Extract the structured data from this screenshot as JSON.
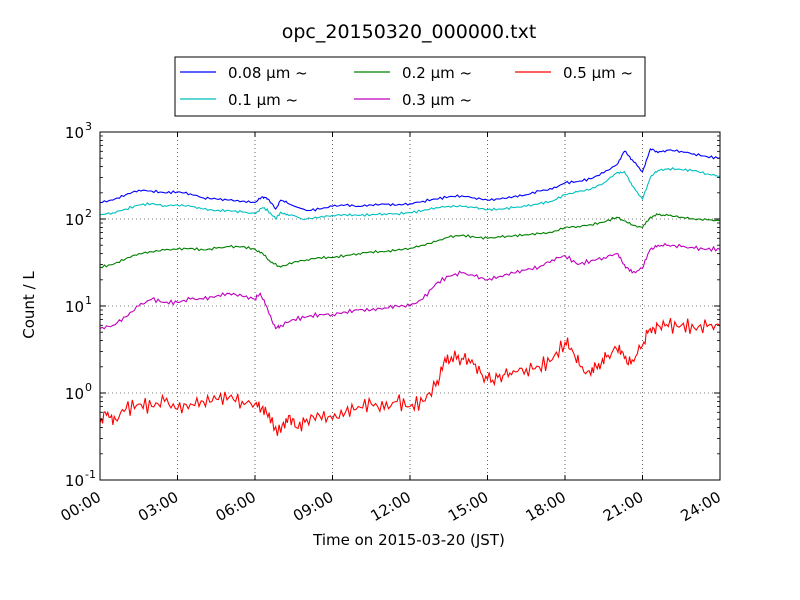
{
  "chart_data": {
    "type": "line",
    "title": "opc_20150320_000000.txt",
    "xlabel": "Time on 2015-03-20 (JST)",
    "ylabel": "Count / L",
    "yscale": "log",
    "xlim": [
      0,
      24
    ],
    "ylim_exp": [
      -1,
      3
    ],
    "grid": true,
    "legend_placement": "top-center",
    "x_ticks": [
      {
        "value": 0,
        "label": "00:00"
      },
      {
        "value": 3,
        "label": "03:00"
      },
      {
        "value": 6,
        "label": "06:00"
      },
      {
        "value": 9,
        "label": "09:00"
      },
      {
        "value": 12,
        "label": "12:00"
      },
      {
        "value": 15,
        "label": "15:00"
      },
      {
        "value": 18,
        "label": "18:00"
      },
      {
        "value": 21,
        "label": "21:00"
      },
      {
        "value": 24,
        "label": "24:00"
      }
    ],
    "y_ticks": [
      {
        "value": 0.1,
        "base": "10",
        "exp": "-1"
      },
      {
        "value": 1,
        "base": "10",
        "exp": "0"
      },
      {
        "value": 10,
        "base": "10",
        "exp": "1"
      },
      {
        "value": 100,
        "base": "10",
        "exp": "2"
      },
      {
        "value": 1000,
        "base": "10",
        "exp": "3"
      }
    ],
    "series": [
      {
        "name": "0.08 μm ~",
        "color": "#0000ff",
        "points": [
          [
            0,
            155
          ],
          [
            0.5,
            165
          ],
          [
            1,
            190
          ],
          [
            1.5,
            215
          ],
          [
            2,
            210
          ],
          [
            2.5,
            200
          ],
          [
            3,
            205
          ],
          [
            3.5,
            195
          ],
          [
            4,
            175
          ],
          [
            4.5,
            170
          ],
          [
            5,
            165
          ],
          [
            5.5,
            160
          ],
          [
            6,
            155
          ],
          [
            6.3,
            180
          ],
          [
            6.5,
            170
          ],
          [
            6.8,
            130
          ],
          [
            7,
            165
          ],
          [
            7.3,
            150
          ],
          [
            8,
            125
          ],
          [
            8.5,
            130
          ],
          [
            9,
            140
          ],
          [
            9.5,
            145
          ],
          [
            10,
            140
          ],
          [
            10.5,
            145
          ],
          [
            11,
            148
          ],
          [
            11.5,
            145
          ],
          [
            12,
            150
          ],
          [
            12.5,
            160
          ],
          [
            13,
            170
          ],
          [
            13.5,
            180
          ],
          [
            14,
            185
          ],
          [
            14.5,
            175
          ],
          [
            15,
            165
          ],
          [
            15.5,
            170
          ],
          [
            16,
            180
          ],
          [
            16.5,
            190
          ],
          [
            17,
            210
          ],
          [
            17.5,
            220
          ],
          [
            18,
            260
          ],
          [
            18.5,
            270
          ],
          [
            19,
            290
          ],
          [
            19.5,
            340
          ],
          [
            20,
            420
          ],
          [
            20.3,
            600
          ],
          [
            20.6,
            480
          ],
          [
            21,
            350
          ],
          [
            21.3,
            640
          ],
          [
            21.6,
            580
          ],
          [
            22,
            620
          ],
          [
            22.5,
            600
          ],
          [
            23,
            560
          ],
          [
            23.5,
            520
          ],
          [
            24,
            500
          ]
        ]
      },
      {
        "name": "0.1 μm ~",
        "color": "#00bfbf",
        "points": [
          [
            0,
            112
          ],
          [
            0.5,
            118
          ],
          [
            1,
            130
          ],
          [
            1.5,
            145
          ],
          [
            2,
            150
          ],
          [
            2.5,
            142
          ],
          [
            3,
            145
          ],
          [
            3.5,
            140
          ],
          [
            4,
            130
          ],
          [
            4.5,
            125
          ],
          [
            5,
            125
          ],
          [
            5.5,
            120
          ],
          [
            6,
            115
          ],
          [
            6.3,
            135
          ],
          [
            6.5,
            125
          ],
          [
            6.8,
            100
          ],
          [
            7,
            120
          ],
          [
            7.3,
            110
          ],
          [
            8,
            100
          ],
          [
            8.5,
            105
          ],
          [
            9,
            110
          ],
          [
            9.5,
            112
          ],
          [
            10,
            110
          ],
          [
            10.5,
            112
          ],
          [
            11,
            115
          ],
          [
            11.5,
            115
          ],
          [
            12,
            118
          ],
          [
            12.5,
            125
          ],
          [
            13,
            135
          ],
          [
            13.5,
            140
          ],
          [
            14,
            140
          ],
          [
            14.5,
            135
          ],
          [
            15,
            128
          ],
          [
            15.5,
            130
          ],
          [
            16,
            135
          ],
          [
            16.5,
            140
          ],
          [
            17,
            150
          ],
          [
            17.5,
            160
          ],
          [
            18,
            190
          ],
          [
            18.5,
            205
          ],
          [
            19,
            220
          ],
          [
            19.5,
            260
          ],
          [
            20,
            340
          ],
          [
            20.3,
            350
          ],
          [
            20.6,
            240
          ],
          [
            21,
            170
          ],
          [
            21.3,
            300
          ],
          [
            21.6,
            360
          ],
          [
            22,
            380
          ],
          [
            22.5,
            370
          ],
          [
            23,
            360
          ],
          [
            23.5,
            330
          ],
          [
            24,
            310
          ]
        ]
      },
      {
        "name": "0.2 μm ~",
        "color": "#008000",
        "points": [
          [
            0,
            28
          ],
          [
            0.5,
            30
          ],
          [
            1,
            35
          ],
          [
            1.5,
            40
          ],
          [
            2,
            42
          ],
          [
            2.5,
            44
          ],
          [
            3,
            45
          ],
          [
            3.5,
            46
          ],
          [
            4,
            44
          ],
          [
            4.5,
            46
          ],
          [
            5,
            48
          ],
          [
            5.5,
            48
          ],
          [
            6,
            45
          ],
          [
            6.3,
            40
          ],
          [
            6.6,
            32
          ],
          [
            7,
            28
          ],
          [
            7.5,
            32
          ],
          [
            8,
            34
          ],
          [
            8.5,
            36
          ],
          [
            9,
            36
          ],
          [
            9.5,
            38
          ],
          [
            10,
            40
          ],
          [
            10.5,
            42
          ],
          [
            11,
            42
          ],
          [
            11.5,
            44
          ],
          [
            12,
            46
          ],
          [
            12.5,
            50
          ],
          [
            13,
            55
          ],
          [
            13.5,
            62
          ],
          [
            14,
            65
          ],
          [
            14.5,
            62
          ],
          [
            15,
            60
          ],
          [
            15.5,
            62
          ],
          [
            16,
            64
          ],
          [
            16.5,
            66
          ],
          [
            17,
            68
          ],
          [
            17.5,
            70
          ],
          [
            18,
            80
          ],
          [
            18.5,
            82
          ],
          [
            19,
            86
          ],
          [
            19.5,
            92
          ],
          [
            20,
            105
          ],
          [
            20.3,
            95
          ],
          [
            20.6,
            85
          ],
          [
            21,
            80
          ],
          [
            21.3,
            105
          ],
          [
            21.6,
            112
          ],
          [
            22,
            110
          ],
          [
            22.5,
            105
          ],
          [
            23,
            100
          ],
          [
            23.5,
            98
          ],
          [
            24,
            95
          ]
        ]
      },
      {
        "name": "0.3 μm ~",
        "color": "#bf00bf",
        "points": [
          [
            0,
            5.5
          ],
          [
            0.5,
            6.0
          ],
          [
            1,
            7.5
          ],
          [
            1.5,
            10
          ],
          [
            2,
            12
          ],
          [
            2.5,
            11
          ],
          [
            3,
            11
          ],
          [
            3.5,
            12
          ],
          [
            4,
            12
          ],
          [
            4.5,
            13
          ],
          [
            5,
            14
          ],
          [
            5.5,
            13
          ],
          [
            6,
            12
          ],
          [
            6.2,
            14
          ],
          [
            6.5,
            9
          ],
          [
            6.8,
            5.5
          ],
          [
            7,
            6
          ],
          [
            7.5,
            7
          ],
          [
            8,
            7.5
          ],
          [
            8.5,
            8
          ],
          [
            9,
            8
          ],
          [
            9.5,
            8.5
          ],
          [
            10,
            9
          ],
          [
            10.5,
            9
          ],
          [
            11,
            9.5
          ],
          [
            11.5,
            10
          ],
          [
            12,
            10
          ],
          [
            12.5,
            12
          ],
          [
            13,
            18
          ],
          [
            13.5,
            22
          ],
          [
            14,
            24
          ],
          [
            14.5,
            22
          ],
          [
            15,
            20
          ],
          [
            15.5,
            22
          ],
          [
            16,
            24
          ],
          [
            16.5,
            26
          ],
          [
            17,
            28
          ],
          [
            17.5,
            34
          ],
          [
            18,
            38
          ],
          [
            18.5,
            30
          ],
          [
            19,
            33
          ],
          [
            19.5,
            36
          ],
          [
            20,
            40
          ],
          [
            20.3,
            30
          ],
          [
            20.6,
            24
          ],
          [
            21,
            27
          ],
          [
            21.3,
            45
          ],
          [
            21.6,
            50
          ],
          [
            22,
            50
          ],
          [
            22.5,
            48
          ],
          [
            23,
            46
          ],
          [
            23.5,
            45
          ],
          [
            24,
            45
          ]
        ]
      },
      {
        "name": "0.5 μm ~",
        "color": "#ff0000",
        "points": [
          [
            0,
            0.45
          ],
          [
            0.3,
            0.6
          ],
          [
            0.6,
            0.5
          ],
          [
            1,
            0.65
          ],
          [
            1.5,
            0.75
          ],
          [
            2,
            0.7
          ],
          [
            2.5,
            0.8
          ],
          [
            3,
            0.65
          ],
          [
            3.5,
            0.75
          ],
          [
            4,
            0.8
          ],
          [
            4.5,
            0.85
          ],
          [
            5,
            0.9
          ],
          [
            5.5,
            0.8
          ],
          [
            6,
            0.75
          ],
          [
            6.3,
            0.7
          ],
          [
            6.6,
            0.45
          ],
          [
            7,
            0.35
          ],
          [
            7.3,
            0.55
          ],
          [
            7.6,
            0.4
          ],
          [
            8,
            0.5
          ],
          [
            8.5,
            0.55
          ],
          [
            9,
            0.5
          ],
          [
            9.5,
            0.6
          ],
          [
            10,
            0.7
          ],
          [
            10.5,
            0.75
          ],
          [
            11,
            0.65
          ],
          [
            11.5,
            0.8
          ],
          [
            12,
            0.7
          ],
          [
            12.5,
            0.8
          ],
          [
            13,
            1.2
          ],
          [
            13.3,
            2.2
          ],
          [
            13.6,
            2.6
          ],
          [
            14,
            2.5
          ],
          [
            14.4,
            2.4
          ],
          [
            14.8,
            1.6
          ],
          [
            15.2,
            1.4
          ],
          [
            15.6,
            1.6
          ],
          [
            16,
            1.8
          ],
          [
            16.5,
            1.9
          ],
          [
            17,
            2.0
          ],
          [
            17.5,
            2.4
          ],
          [
            18,
            3.8
          ],
          [
            18.3,
            3.0
          ],
          [
            18.6,
            2.0
          ],
          [
            19,
            1.6
          ],
          [
            19.3,
            2.2
          ],
          [
            19.6,
            2.6
          ],
          [
            20,
            3.2
          ],
          [
            20.3,
            2.5
          ],
          [
            20.6,
            2.4
          ],
          [
            21,
            3.5
          ],
          [
            21.3,
            5.5
          ],
          [
            21.6,
            6.0
          ],
          [
            22,
            5.8
          ],
          [
            22.5,
            6.0
          ],
          [
            23,
            5.6
          ],
          [
            23.5,
            5.8
          ],
          [
            24,
            5.9
          ]
        ]
      }
    ]
  }
}
